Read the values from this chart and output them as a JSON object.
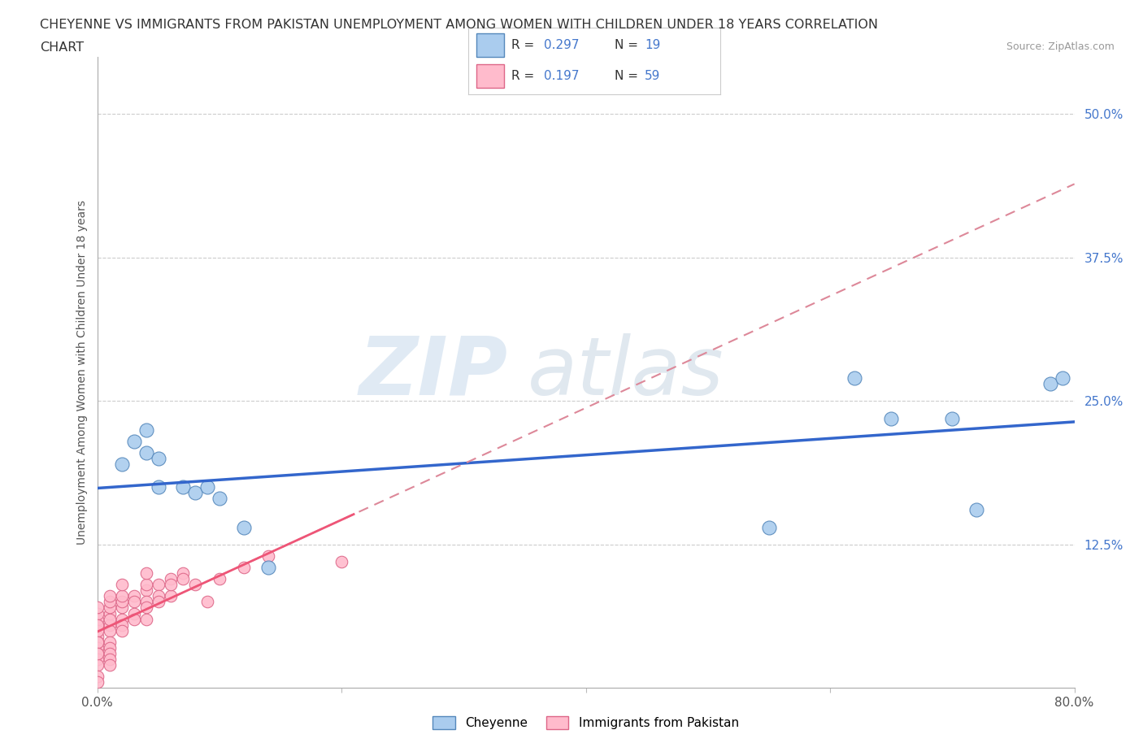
{
  "title_line1": "CHEYENNE VS IMMIGRANTS FROM PAKISTAN UNEMPLOYMENT AMONG WOMEN WITH CHILDREN UNDER 18 YEARS CORRELATION",
  "title_line2": "CHART",
  "source_text": "Source: ZipAtlas.com",
  "ylabel": "Unemployment Among Women with Children Under 18 years",
  "xlim": [
    0.0,
    0.8
  ],
  "ylim": [
    0.0,
    0.55
  ],
  "yticks": [
    0.0,
    0.125,
    0.25,
    0.375,
    0.5
  ],
  "ytick_labels": [
    "",
    "12.5%",
    "25.0%",
    "37.5%",
    "50.0%"
  ],
  "xticks": [
    0.0,
    0.2,
    0.4,
    0.6,
    0.8
  ],
  "xtick_labels": [
    "0.0%",
    "",
    "",
    "",
    "80.0%"
  ],
  "background_color": "#ffffff",
  "grid_color": "#cccccc",
  "cheyenne_color": "#aaccee",
  "cheyenne_edge_color": "#5588bb",
  "pakistan_color": "#ffbbcc",
  "pakistan_edge_color": "#dd6688",
  "cheyenne_line_color": "#3366cc",
  "pakistan_line_color": "#ee5577",
  "pakistan_dashed_color": "#dd8899",
  "legend_label1": "Cheyenne",
  "legend_label2": "Immigrants from Pakistan",
  "watermark_zip": "ZIP",
  "watermark_atlas": "atlas",
  "cheyenne_x": [
    0.02,
    0.03,
    0.04,
    0.04,
    0.05,
    0.05,
    0.07,
    0.08,
    0.09,
    0.1,
    0.12,
    0.14,
    0.55,
    0.62,
    0.65,
    0.7,
    0.72,
    0.78,
    0.79
  ],
  "cheyenne_y": [
    0.195,
    0.215,
    0.205,
    0.225,
    0.175,
    0.2,
    0.175,
    0.17,
    0.175,
    0.165,
    0.14,
    0.105,
    0.14,
    0.27,
    0.235,
    0.235,
    0.155,
    0.265,
    0.27
  ],
  "pakistan_x": [
    0.0,
    0.0,
    0.0,
    0.0,
    0.0,
    0.0,
    0.0,
    0.0,
    0.0,
    0.0,
    0.0,
    0.0,
    0.0,
    0.0,
    0.0,
    0.0,
    0.01,
    0.01,
    0.01,
    0.01,
    0.01,
    0.01,
    0.01,
    0.01,
    0.01,
    0.01,
    0.01,
    0.01,
    0.02,
    0.02,
    0.02,
    0.02,
    0.02,
    0.02,
    0.02,
    0.03,
    0.03,
    0.03,
    0.03,
    0.04,
    0.04,
    0.04,
    0.04,
    0.04,
    0.04,
    0.05,
    0.05,
    0.05,
    0.06,
    0.06,
    0.06,
    0.07,
    0.07,
    0.08,
    0.09,
    0.1,
    0.12,
    0.14,
    0.2
  ],
  "pakistan_y": [
    0.055,
    0.045,
    0.04,
    0.035,
    0.03,
    0.025,
    0.02,
    0.06,
    0.05,
    0.04,
    0.03,
    0.065,
    0.055,
    0.07,
    0.01,
    0.005,
    0.055,
    0.05,
    0.04,
    0.035,
    0.03,
    0.065,
    0.06,
    0.07,
    0.025,
    0.02,
    0.075,
    0.08,
    0.07,
    0.06,
    0.055,
    0.05,
    0.075,
    0.08,
    0.09,
    0.08,
    0.075,
    0.065,
    0.06,
    0.085,
    0.075,
    0.07,
    0.06,
    0.09,
    0.1,
    0.09,
    0.08,
    0.075,
    0.095,
    0.08,
    0.09,
    0.1,
    0.095,
    0.09,
    0.075,
    0.095,
    0.105,
    0.115,
    0.11
  ]
}
